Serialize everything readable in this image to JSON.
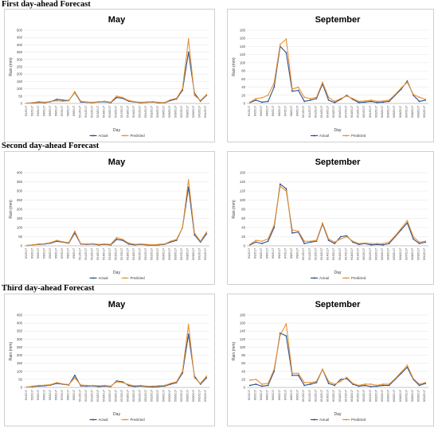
{
  "sections": [
    {
      "title": "First day-ahead Forecast"
    },
    {
      "title": "Second day-ahead Forecast"
    },
    {
      "title": "Third day-ahead Forecast"
    }
  ],
  "colors": {
    "actual": "#2e4f8c",
    "predicted": "#e8902f"
  },
  "chart_data": [
    {
      "type": "line",
      "title": "May",
      "xlabel": "Day",
      "ylabel": "Rain (mm)",
      "ylim": [
        0,
        500
      ],
      "yticks": [
        0,
        50,
        100,
        150,
        200,
        250,
        300,
        350,
        400,
        450,
        500
      ],
      "categories": [
        "5/1/2017",
        "5/2/2017",
        "5/3/2017",
        "5/4/2017",
        "5/5/2017",
        "5/6/2017",
        "5/7/2017",
        "5/8/2017",
        "5/9/2017",
        "5/10/2017",
        "5/11/2017",
        "5/12/2017",
        "5/13/2017",
        "5/14/2017",
        "5/15/2017",
        "5/16/2017",
        "5/17/2017",
        "5/18/2017",
        "5/19/2017",
        "5/20/2017",
        "5/21/2017",
        "5/22/2017",
        "5/23/2017",
        "5/24/2017",
        "5/25/2017",
        "5/26/2017",
        "5/27/2017",
        "5/28/2017",
        "5/29/2017",
        "5/30/2017",
        "5/31/2017"
      ],
      "series": [
        {
          "name": "Actual",
          "values": [
            2,
            3,
            8,
            5,
            12,
            28,
            22,
            20,
            75,
            10,
            8,
            6,
            10,
            12,
            5,
            40,
            35,
            15,
            10,
            5,
            8,
            10,
            5,
            4,
            20,
            30,
            90,
            350,
            70,
            15,
            55
          ]
        },
        {
          "name": "Predicted",
          "values": [
            2,
            5,
            12,
            8,
            14,
            18,
            15,
            18,
            80,
            15,
            10,
            8,
            12,
            15,
            8,
            50,
            40,
            20,
            12,
            8,
            10,
            12,
            8,
            6,
            25,
            35,
            100,
            440,
            55,
            20,
            60
          ]
        }
      ],
      "legend": "bottom-center"
    },
    {
      "type": "line",
      "title": "September",
      "xlabel": "Day",
      "ylabel": "Rain (mm)",
      "ylim": [
        0,
        180
      ],
      "yticks": [
        0,
        20,
        40,
        60,
        80,
        100,
        120,
        140,
        160,
        180
      ],
      "categories": [
        "9/1/2017",
        "9/2/2017",
        "9/3/2017",
        "9/4/2017",
        "9/5/2017",
        "9/6/2017",
        "9/7/2017",
        "9/8/2017",
        "9/9/2017",
        "9/10/2017",
        "9/11/2017",
        "9/12/2017",
        "9/13/2017",
        "9/14/2017",
        "9/15/2017",
        "9/16/2017",
        "9/17/2017",
        "9/18/2017",
        "9/19/2017",
        "9/20/2017",
        "9/21/2017",
        "9/22/2017",
        "9/23/2017",
        "9/24/2017",
        "9/25/2017",
        "9/26/2017",
        "9/27/2017",
        "9/28/2017",
        "9/29/2017",
        "9/30/2017"
      ],
      "series": [
        {
          "name": "Actual",
          "values": [
            2,
            8,
            3,
            5,
            40,
            140,
            125,
            30,
            32,
            5,
            8,
            12,
            48,
            8,
            2,
            10,
            20,
            10,
            2,
            3,
            5,
            2,
            3,
            5,
            20,
            35,
            55,
            20,
            5,
            8
          ]
        },
        {
          "name": "Predicted",
          "values": [
            3,
            12,
            14,
            20,
            50,
            145,
            158,
            35,
            40,
            15,
            12,
            15,
            52,
            15,
            5,
            12,
            18,
            12,
            5,
            6,
            8,
            5,
            6,
            8,
            22,
            38,
            52,
            22,
            15,
            10
          ]
        }
      ],
      "legend": "bottom-center"
    },
    {
      "type": "line",
      "title": "May",
      "xlabel": "Day",
      "ylabel": "Rain (mm)",
      "ylim": [
        0,
        400
      ],
      "yticks": [
        0,
        50,
        100,
        150,
        200,
        250,
        300,
        350,
        400
      ],
      "categories": [
        "5/1/2017",
        "5/2/2017",
        "5/3/2017",
        "5/4/2017",
        "5/5/2017",
        "5/6/2017",
        "5/7/2017",
        "5/8/2017",
        "5/9/2017",
        "5/10/2017",
        "5/11/2017",
        "5/12/2017",
        "5/13/2017",
        "5/14/2017",
        "5/15/2017",
        "5/16/2017",
        "5/17/2017",
        "5/18/2017",
        "5/19/2017",
        "5/20/2017",
        "5/21/2017",
        "5/22/2017",
        "5/23/2017",
        "5/24/2017",
        "5/25/2017",
        "5/26/2017",
        "5/27/2017",
        "5/28/2017",
        "5/29/2017",
        "5/30/2017",
        "5/31/2017"
      ],
      "series": [
        {
          "name": "Actual",
          "values": [
            2,
            5,
            8,
            10,
            15,
            25,
            20,
            15,
            70,
            10,
            8,
            10,
            5,
            8,
            5,
            35,
            30,
            10,
            5,
            8,
            5,
            3,
            5,
            8,
            20,
            30,
            100,
            320,
            60,
            20,
            65
          ]
        },
        {
          "name": "Predicted",
          "values": [
            2,
            5,
            10,
            12,
            18,
            30,
            22,
            18,
            80,
            12,
            10,
            12,
            8,
            10,
            8,
            45,
            35,
            15,
            8,
            10,
            8,
            5,
            8,
            10,
            25,
            35,
            100,
            360,
            70,
            25,
            75
          ]
        }
      ],
      "legend": "bottom-center"
    },
    {
      "type": "line",
      "title": "September",
      "xlabel": "Day",
      "ylabel": "Rain (mm)",
      "ylim": [
        0,
        160
      ],
      "yticks": [
        0,
        20,
        40,
        60,
        80,
        100,
        120,
        140,
        160
      ],
      "categories": [
        "9/1/2017",
        "9/2/2017",
        "9/3/2017",
        "9/4/2017",
        "9/5/2017",
        "9/6/2017",
        "9/7/2017",
        "9/8/2017",
        "9/9/2017",
        "9/10/2017",
        "9/11/2017",
        "9/12/2017",
        "9/13/2017",
        "9/14/2017",
        "9/15/2017",
        "9/16/2017",
        "9/17/2017",
        "9/18/2017",
        "9/19/2017",
        "9/20/2017",
        "9/21/2017",
        "9/22/2017",
        "9/23/2017",
        "9/24/2017",
        "9/25/2017",
        "9/26/2017",
        "9/27/2017",
        "9/28/2017",
        "9/29/2017",
        "9/30/2017"
      ],
      "series": [
        {
          "name": "Actual",
          "values": [
            2,
            8,
            5,
            10,
            40,
            135,
            125,
            28,
            30,
            5,
            8,
            10,
            48,
            12,
            5,
            20,
            22,
            8,
            3,
            5,
            2,
            3,
            2,
            5,
            20,
            35,
            50,
            15,
            5,
            8
          ]
        },
        {
          "name": "Predicted",
          "values": [
            3,
            12,
            10,
            15,
            45,
            130,
            120,
            35,
            32,
            10,
            10,
            12,
            50,
            15,
            8,
            15,
            20,
            10,
            5,
            6,
            5,
            5,
            5,
            8,
            22,
            38,
            55,
            20,
            8,
            10
          ]
        }
      ],
      "legend": "bottom-center"
    },
    {
      "type": "line",
      "title": "May",
      "xlabel": "Day",
      "ylabel": "Rain (mm)",
      "ylim": [
        0,
        450
      ],
      "yticks": [
        0,
        50,
        100,
        150,
        200,
        250,
        300,
        350,
        400,
        450
      ],
      "categories": [
        "5/1/2017",
        "5/2/2017",
        "5/3/2017",
        "5/4/2017",
        "5/5/2017",
        "5/6/2017",
        "5/7/2017",
        "5/8/2017",
        "5/9/2017",
        "5/10/2017",
        "5/11/2017",
        "5/12/2017",
        "5/13/2017",
        "5/14/2017",
        "5/15/2017",
        "5/16/2017",
        "5/17/2017",
        "5/18/2017",
        "5/19/2017",
        "5/20/2017",
        "5/21/2017",
        "5/22/2017",
        "5/23/2017",
        "5/24/2017",
        "5/25/2017",
        "5/26/2017",
        "5/27/2017",
        "5/28/2017",
        "5/29/2017",
        "5/30/2017",
        "5/31/2017"
      ],
      "series": [
        {
          "name": "Actual",
          "values": [
            2,
            5,
            8,
            10,
            15,
            25,
            20,
            15,
            75,
            10,
            8,
            10,
            5,
            8,
            5,
            40,
            35,
            12,
            5,
            8,
            5,
            3,
            5,
            8,
            20,
            30,
            90,
            330,
            70,
            20,
            60
          ]
        },
        {
          "name": "Predicted",
          "values": [
            2,
            8,
            12,
            14,
            18,
            30,
            22,
            18,
            60,
            15,
            12,
            12,
            10,
            12,
            8,
            35,
            30,
            18,
            10,
            12,
            8,
            8,
            10,
            12,
            25,
            35,
            100,
            390,
            60,
            25,
            70
          ]
        }
      ],
      "legend": "bottom-center"
    },
    {
      "type": "line",
      "title": "September",
      "xlabel": "Day",
      "ylabel": "Rain (mm)",
      "ylim": [
        0,
        180
      ],
      "yticks": [
        0,
        20,
        40,
        60,
        80,
        100,
        120,
        140,
        160,
        180
      ],
      "categories": [
        "9/1/2017",
        "9/2/2017",
        "9/3/2017",
        "9/4/2017",
        "9/5/2017",
        "9/6/2017",
        "9/7/2017",
        "9/8/2017",
        "9/9/2017",
        "9/10/2017",
        "9/11/2017",
        "9/12/2017",
        "9/13/2017",
        "9/14/2017",
        "9/15/2017",
        "9/16/2017",
        "9/17/2017",
        "9/18/2017",
        "9/19/2017",
        "9/20/2017",
        "9/21/2017",
        "9/22/2017",
        "9/23/2017",
        "9/24/2017",
        "9/25/2017",
        "9/26/2017",
        "9/27/2017",
        "9/28/2017",
        "9/29/2017",
        "9/30/2017"
      ],
      "series": [
        {
          "name": "Actual",
          "values": [
            5,
            8,
            3,
            5,
            40,
            135,
            128,
            30,
            30,
            5,
            8,
            12,
            45,
            10,
            5,
            20,
            22,
            8,
            3,
            5,
            2,
            3,
            5,
            5,
            20,
            35,
            50,
            20,
            5,
            10
          ]
        },
        {
          "name": "Predicted",
          "values": [
            18,
            20,
            8,
            10,
            45,
            130,
            158,
            35,
            35,
            12,
            12,
            15,
            45,
            15,
            8,
            15,
            25,
            10,
            5,
            8,
            8,
            5,
            8,
            8,
            22,
            38,
            55,
            22,
            8,
            12
          ]
        }
      ],
      "legend": "bottom-center"
    }
  ]
}
